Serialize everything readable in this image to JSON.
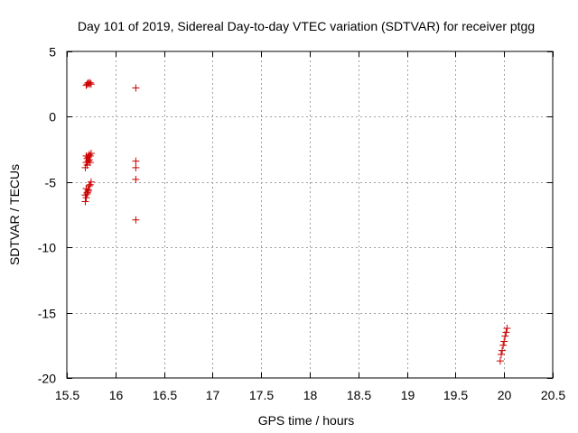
{
  "chart_data": {
    "type": "scatter",
    "title": "Day 101 of 2019, Sidereal Day-to-day VTEC variation (SDTVAR) for receiver ptgg",
    "xlabel": "GPS time / hours",
    "ylabel": "SDTVAR / TECUs",
    "xlim": [
      15.5,
      20.5
    ],
    "ylim": [
      -20,
      5
    ],
    "xticks": [
      15.5,
      16,
      16.5,
      17,
      17.5,
      18,
      18.5,
      19,
      19.5,
      20,
      20.5
    ],
    "xtick_labels": [
      "15.5",
      "16",
      "16.5",
      "17",
      "17.5",
      "18",
      "18.5",
      "19",
      "19.5",
      "20",
      "20.5"
    ],
    "yticks": [
      5,
      0,
      -5,
      -10,
      -15,
      -20
    ],
    "ytick_labels": [
      "5",
      "0",
      "-5",
      "-10",
      "-15",
      "-20"
    ],
    "grid": true,
    "marker": "+",
    "color": "#cc0000",
    "series": [
      {
        "name": "SDTVAR",
        "points": [
          [
            15.7,
            2.4
          ],
          [
            15.71,
            2.5
          ],
          [
            15.72,
            2.6
          ],
          [
            15.73,
            2.5
          ],
          [
            15.74,
            2.6
          ],
          [
            15.75,
            2.5
          ],
          [
            15.7,
            -3.0
          ],
          [
            15.71,
            -3.2
          ],
          [
            15.72,
            -3.1
          ],
          [
            15.73,
            -2.9
          ],
          [
            15.74,
            -3.0
          ],
          [
            15.75,
            -2.8
          ],
          [
            15.7,
            -3.5
          ],
          [
            15.71,
            -3.7
          ],
          [
            15.72,
            -3.4
          ],
          [
            15.73,
            -3.3
          ],
          [
            15.74,
            -3.5
          ],
          [
            15.69,
            -3.9
          ],
          [
            15.7,
            -5.5
          ],
          [
            15.71,
            -5.8
          ],
          [
            15.72,
            -5.6
          ],
          [
            15.73,
            -5.3
          ],
          [
            15.74,
            -5.2
          ],
          [
            15.75,
            -5.0
          ],
          [
            15.69,
            -6.0
          ],
          [
            15.7,
            -6.2
          ],
          [
            15.71,
            -5.9
          ],
          [
            15.72,
            -5.7
          ],
          [
            15.69,
            -6.5
          ],
          [
            16.21,
            2.2
          ],
          [
            16.21,
            -3.4
          ],
          [
            16.21,
            -3.9
          ],
          [
            16.21,
            -4.8
          ],
          [
            16.21,
            -7.9
          ],
          [
            19.96,
            -18.7
          ],
          [
            19.97,
            -18.2
          ],
          [
            19.98,
            -17.9
          ],
          [
            19.99,
            -17.5
          ],
          [
            20.0,
            -17.2
          ],
          [
            20.01,
            -16.8
          ],
          [
            20.02,
            -16.5
          ],
          [
            20.03,
            -16.2
          ]
        ]
      }
    ]
  }
}
